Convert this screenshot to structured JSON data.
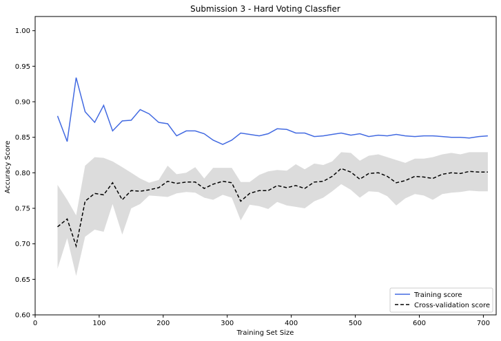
{
  "chart_data": {
    "type": "line",
    "title": "Submission 3 - Hard Voting Classfier",
    "xlabel": "Training Set Size",
    "ylabel": "Accuracy Score",
    "xlim": [
      0,
      720
    ],
    "ylim": [
      0.6,
      1.02
    ],
    "xticks": [
      0,
      100,
      200,
      300,
      400,
      500,
      600,
      700
    ],
    "yticks": [
      0.6,
      0.65,
      0.7,
      0.75,
      0.8,
      0.85,
      0.9,
      0.95,
      1.0
    ],
    "xtick_labels": [
      "0",
      "100",
      "200",
      "300",
      "400",
      "500",
      "600",
      "700"
    ],
    "ytick_labels": [
      "0.60",
      "0.65",
      "0.70",
      "0.75",
      "0.80",
      "0.85",
      "0.90",
      "0.95",
      "1.00"
    ],
    "grid": false,
    "legend_position": "bottom-right",
    "colors": {
      "training": "#4169e1",
      "cv": "#000000",
      "band": "#dcdcdc"
    },
    "series": [
      {
        "name": "Training score",
        "style": "solid",
        "x": [
          35,
          50,
          64,
          78,
          93,
          107,
          121,
          136,
          150,
          164,
          178,
          193,
          207,
          221,
          236,
          250,
          264,
          278,
          293,
          307,
          321,
          335,
          350,
          364,
          378,
          393,
          407,
          421,
          436,
          450,
          464,
          478,
          493,
          507,
          521,
          536,
          550,
          564,
          578,
          593,
          607,
          621,
          636,
          650,
          664,
          678,
          693,
          707
        ],
        "y": [
          0.88,
          0.844,
          0.934,
          0.886,
          0.871,
          0.895,
          0.859,
          0.873,
          0.874,
          0.889,
          0.883,
          0.871,
          0.869,
          0.852,
          0.859,
          0.859,
          0.855,
          0.846,
          0.84,
          0.846,
          0.856,
          0.854,
          0.852,
          0.855,
          0.862,
          0.861,
          0.856,
          0.856,
          0.851,
          0.852,
          0.854,
          0.856,
          0.853,
          0.855,
          0.851,
          0.853,
          0.852,
          0.854,
          0.852,
          0.851,
          0.852,
          0.852,
          0.851,
          0.85,
          0.85,
          0.849,
          0.851,
          0.852
        ]
      },
      {
        "name": "Cross-validation score",
        "style": "dashed",
        "x": [
          35,
          50,
          64,
          78,
          93,
          107,
          121,
          136,
          150,
          164,
          178,
          193,
          207,
          221,
          236,
          250,
          264,
          278,
          293,
          307,
          321,
          335,
          350,
          364,
          378,
          393,
          407,
          421,
          436,
          450,
          464,
          478,
          493,
          507,
          521,
          536,
          550,
          564,
          578,
          593,
          607,
          621,
          636,
          650,
          664,
          678,
          693,
          707
        ],
        "y": [
          0.724,
          0.735,
          0.697,
          0.76,
          0.771,
          0.769,
          0.786,
          0.762,
          0.775,
          0.774,
          0.776,
          0.779,
          0.788,
          0.785,
          0.787,
          0.787,
          0.778,
          0.784,
          0.788,
          0.786,
          0.76,
          0.771,
          0.775,
          0.775,
          0.782,
          0.779,
          0.782,
          0.778,
          0.787,
          0.788,
          0.795,
          0.806,
          0.801,
          0.791,
          0.799,
          0.8,
          0.795,
          0.786,
          0.789,
          0.795,
          0.794,
          0.792,
          0.798,
          0.8,
          0.799,
          0.802,
          0.801,
          0.801
        ],
        "band_upper": [
          0.783,
          0.762,
          0.74,
          0.81,
          0.822,
          0.821,
          0.816,
          0.808,
          0.8,
          0.792,
          0.786,
          0.79,
          0.81,
          0.798,
          0.8,
          0.808,
          0.792,
          0.807,
          0.807,
          0.807,
          0.787,
          0.787,
          0.797,
          0.802,
          0.804,
          0.803,
          0.812,
          0.805,
          0.813,
          0.811,
          0.816,
          0.829,
          0.828,
          0.817,
          0.824,
          0.826,
          0.822,
          0.818,
          0.814,
          0.82,
          0.82,
          0.822,
          0.826,
          0.828,
          0.826,
          0.829,
          0.829,
          0.829
        ],
        "band_lower": [
          0.665,
          0.708,
          0.655,
          0.71,
          0.72,
          0.717,
          0.756,
          0.713,
          0.75,
          0.756,
          0.768,
          0.767,
          0.766,
          0.771,
          0.773,
          0.772,
          0.765,
          0.762,
          0.769,
          0.765,
          0.733,
          0.755,
          0.753,
          0.749,
          0.759,
          0.754,
          0.752,
          0.75,
          0.76,
          0.765,
          0.774,
          0.784,
          0.776,
          0.765,
          0.774,
          0.773,
          0.767,
          0.754,
          0.764,
          0.77,
          0.768,
          0.762,
          0.77,
          0.772,
          0.773,
          0.775,
          0.774,
          0.774
        ]
      }
    ]
  }
}
